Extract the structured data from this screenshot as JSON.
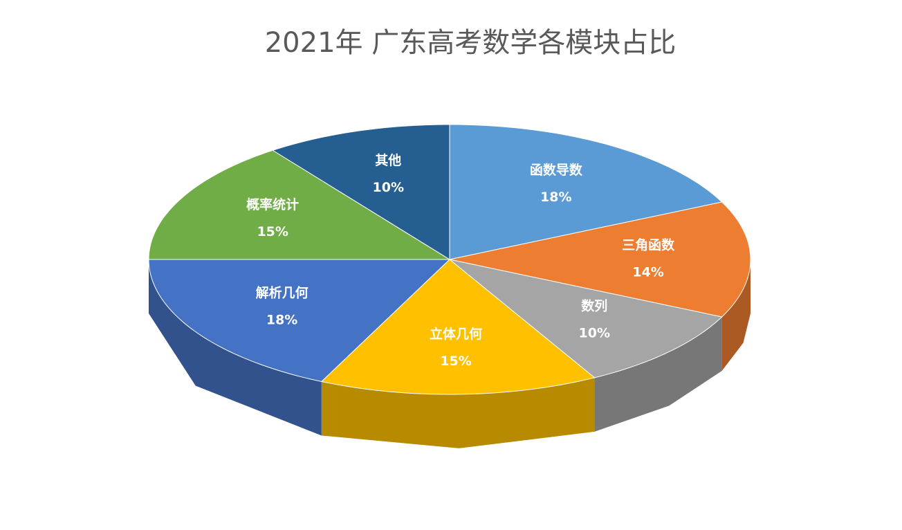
{
  "chart_data": {
    "type": "pie",
    "title": "2021年 广东高考数学各模块占比",
    "categories": [
      "函数导数",
      "三角函数",
      "数列",
      "立体几何",
      "解析几何",
      "概率统计",
      "其他"
    ],
    "values": [
      18,
      14,
      10,
      15,
      18,
      15,
      10
    ],
    "value_labels": [
      "18%",
      "14%",
      "10%",
      "15%",
      "18%",
      "15%",
      "10%"
    ],
    "colors": [
      "#5b9bd5",
      "#ed7d31",
      "#a5a5a5",
      "#ffc000",
      "#4472c4",
      "#70ad47",
      "#255e91"
    ]
  }
}
